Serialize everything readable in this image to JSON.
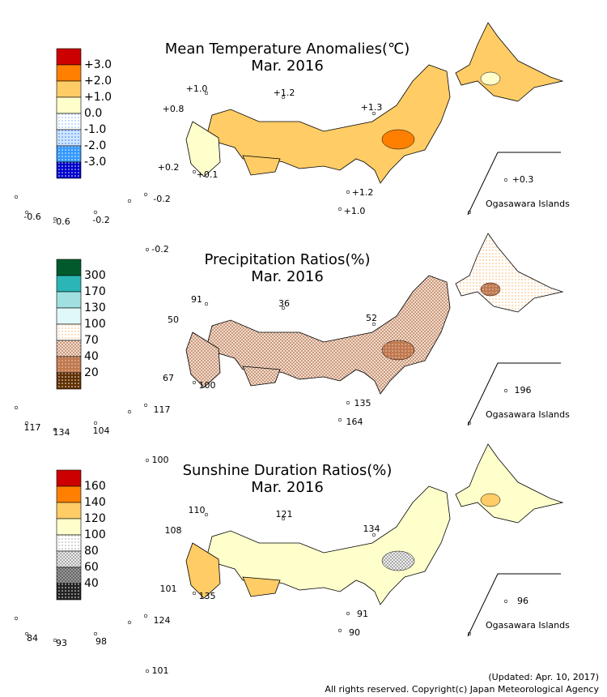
{
  "panels": [
    {
      "title": "Mean Temperature Anomalies(℃)",
      "subtitle": "Mar. 2016",
      "legend": [
        "+3.0",
        "+2.0",
        "+1.0",
        "0.0",
        "-1.0",
        "-2.0",
        "-3.0"
      ],
      "labels": [
        "+1.0",
        "+1.2",
        "+0.8",
        "+1.3",
        "+0.2",
        "+0.1",
        "+1.2",
        "+1.0",
        "+0.3",
        "-0.6",
        "-0.6",
        "-0.2",
        "-0.2",
        "-0.2"
      ],
      "islands": "Ogasawara Islands"
    },
    {
      "title": "Precipitation Ratios(%)",
      "subtitle": "Mar. 2016",
      "legend": [
        "300",
        "170",
        "130",
        "100",
        "70",
        "40",
        "20"
      ],
      "labels": [
        "91",
        "36",
        "50",
        "52",
        "67",
        "100",
        "135",
        "164",
        "196",
        "117",
        "134",
        "104",
        "117",
        "100"
      ],
      "islands": "Ogasawara Islands"
    },
    {
      "title": "Sunshine Duration Ratios(%)",
      "subtitle": "Mar. 2016",
      "legend": [
        "160",
        "140",
        "120",
        "100",
        "80",
        "60",
        "40"
      ],
      "labels": [
        "110",
        "121",
        "108",
        "134",
        "101",
        "135",
        "91",
        "90",
        "96",
        "84",
        "93",
        "98",
        "124",
        "101"
      ],
      "islands": "Ogasawara Islands"
    }
  ],
  "footer": {
    "updated": "(Updated: Apr. 10, 2017)",
    "copyright": "All rights reserved. Copyright(c) Japan Meteorological Agency"
  }
}
